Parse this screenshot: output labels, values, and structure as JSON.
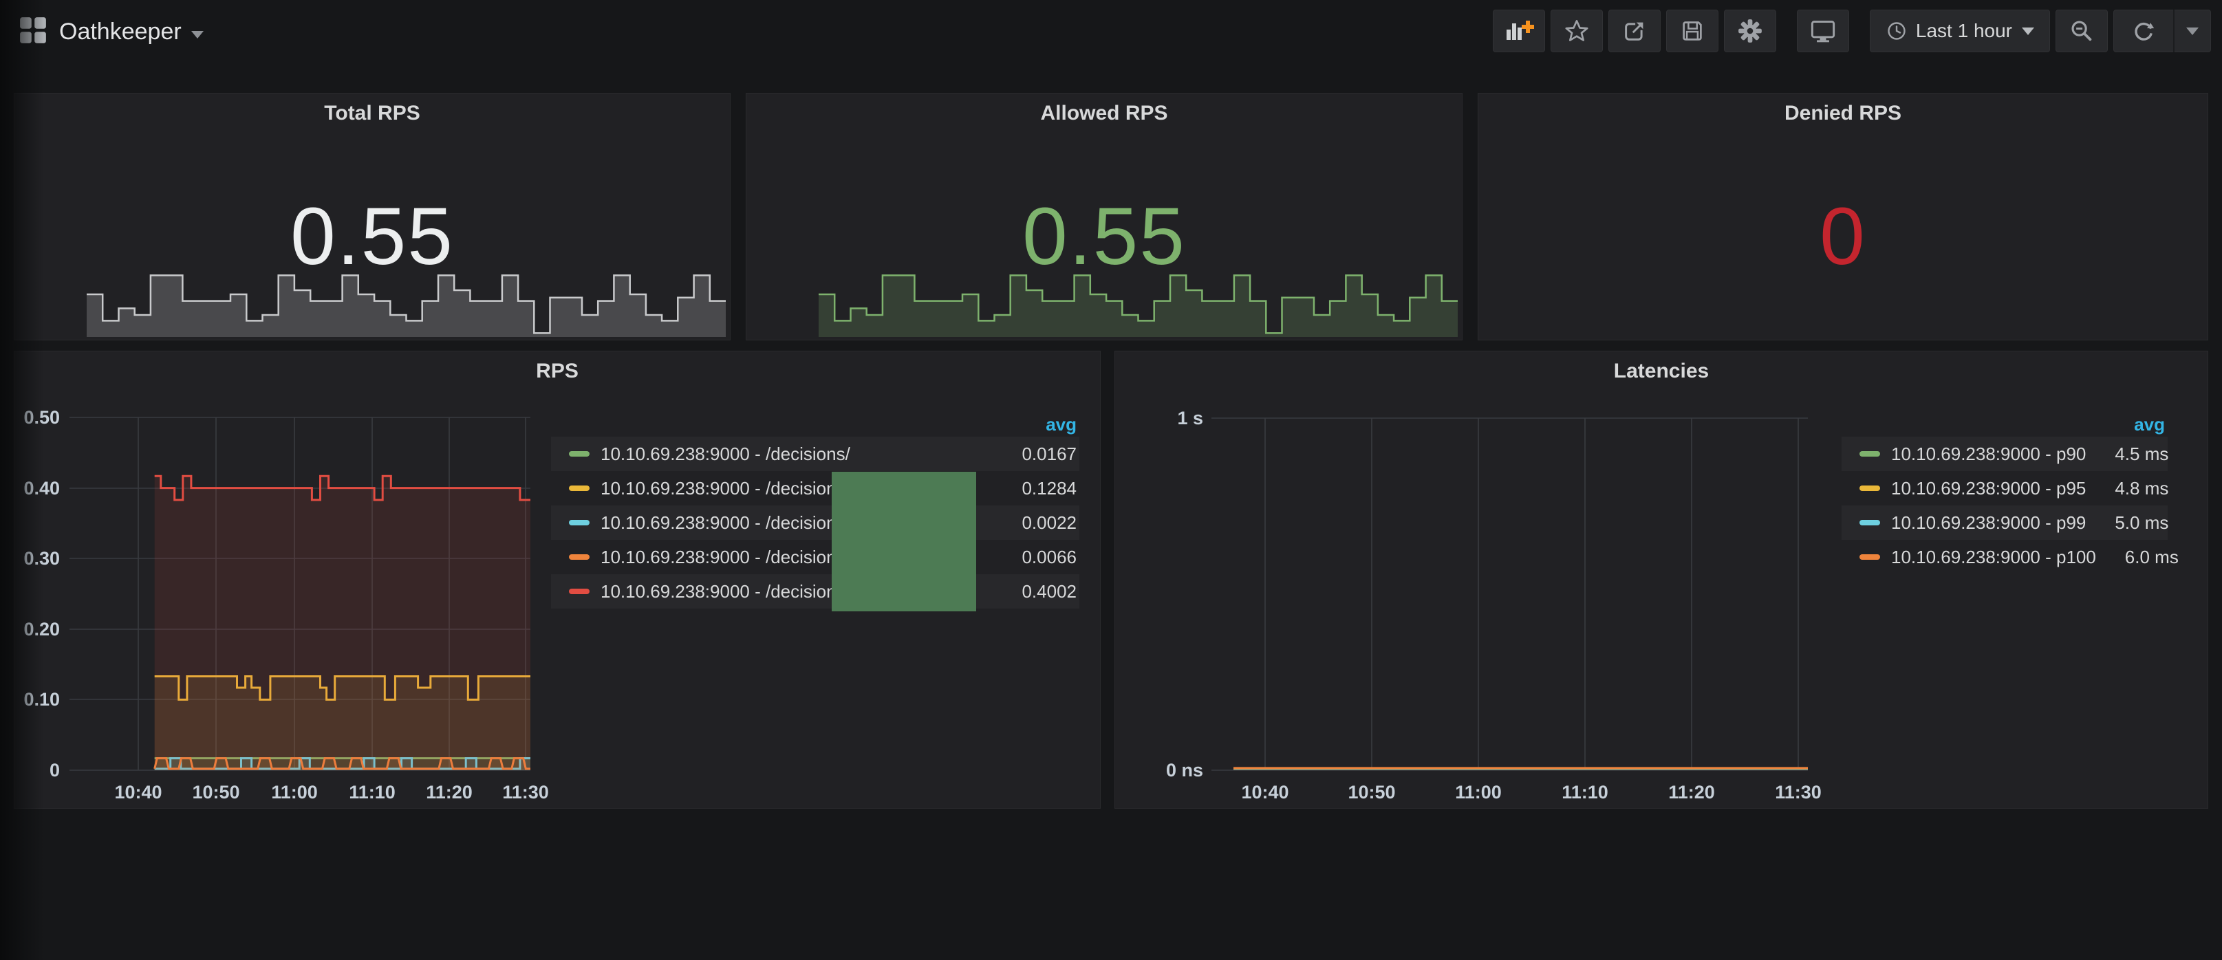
{
  "page": {
    "background": "#161719",
    "panel_background": "#212124",
    "accent_blue": "#33b5e5"
  },
  "navbar": {
    "title": "Oathkeeper",
    "time_picker_label": "Last 1 hour",
    "icons": {
      "dashboard_picker": "grid-squares",
      "add_panel": "bar-chart-plus",
      "star": "star-outline",
      "share": "box-arrow-out",
      "save": "floppy-disk",
      "settings": "gear",
      "cycle_view": "monitor",
      "time_range": "clock",
      "zoom_out": "magnifier-minus",
      "refresh": "circular-arrows",
      "refresh_interval": "triangle-down"
    }
  },
  "stat_panels": [
    {
      "title": "Total RPS",
      "value": "0.55",
      "value_color": "#eceeef",
      "spark_color": "#c9cacc",
      "spark_fill": "rgba(201,202,204,0.24)"
    },
    {
      "title": "Allowed RPS",
      "value": "0.55",
      "value_color": "#7eb26d",
      "spark_color": "#7eb26d",
      "spark_fill": "rgba(126,178,109,0.22)"
    },
    {
      "title": "Denied RPS",
      "value": "0",
      "value_color": "#c4252e"
    }
  ],
  "overlay_artifact": {
    "color": "#4d7b54"
  },
  "chart_data": [
    {
      "type": "area",
      "title": "Total RPS sparkline",
      "ylim": [
        0,
        1
      ],
      "values": [
        0.5,
        0.18,
        0.33,
        0.25,
        0.73,
        0.73,
        0.42,
        0.42,
        0.42,
        0.5,
        0.18,
        0.25,
        0.73,
        0.55,
        0.42,
        0.42,
        0.73,
        0.5,
        0.42,
        0.25,
        0.18,
        0.42,
        0.73,
        0.55,
        0.42,
        0.42,
        0.73,
        0.42,
        0.03,
        0.46,
        0.46,
        0.25,
        0.42,
        0.73,
        0.5,
        0.25,
        0.18,
        0.46,
        0.73,
        0.42
      ]
    },
    {
      "type": "area",
      "title": "Allowed RPS sparkline",
      "ylim": [
        0,
        1
      ],
      "values": [
        0.5,
        0.18,
        0.33,
        0.25,
        0.73,
        0.73,
        0.42,
        0.42,
        0.42,
        0.5,
        0.18,
        0.25,
        0.73,
        0.55,
        0.42,
        0.42,
        0.73,
        0.5,
        0.42,
        0.25,
        0.18,
        0.42,
        0.73,
        0.55,
        0.42,
        0.42,
        0.73,
        0.42,
        0.03,
        0.46,
        0.46,
        0.25,
        0.42,
        0.73,
        0.5,
        0.25,
        0.18,
        0.46,
        0.73,
        0.42
      ]
    },
    {
      "type": "line",
      "title": "RPS",
      "legend_header": "avg",
      "xlabel": "",
      "ylabel": "",
      "ylim": [
        0,
        0.5
      ],
      "grid": true,
      "legend_position": "right-table",
      "x_ticks": [
        "10:40",
        "10:50",
        "11:00",
        "11:10",
        "11:20",
        "11:30"
      ],
      "y_ticks": [
        "0",
        "0.10",
        "0.20",
        "0.30",
        "0.40",
        "0.50"
      ],
      "series": [
        {
          "name": "10.10.69.238:9000 - /decisions/",
          "color": "#7eb26d",
          "avg": "0.0167",
          "points": [
            [
              0.097,
              0.017
            ],
            [
              1,
              0.017
            ]
          ]
        },
        {
          "name": "10.10.69.238:9000 - /decisions/",
          "color": "#eab839",
          "avg": "0.1284",
          "points": [
            [
              0.097,
              0.133
            ],
            [
              0.155,
              0.133
            ],
            [
              0.155,
              0.1
            ],
            [
              0.175,
              0.1
            ],
            [
              0.175,
              0.133
            ],
            [
              0.295,
              0.133
            ],
            [
              0.295,
              0.117
            ],
            [
              0.315,
              0.117
            ],
            [
              0.315,
              0.133
            ],
            [
              0.33,
              0.133
            ],
            [
              0.33,
              0.117
            ],
            [
              0.35,
              0.117
            ],
            [
              0.35,
              0.1
            ],
            [
              0.375,
              0.1
            ],
            [
              0.375,
              0.133
            ],
            [
              0.495,
              0.133
            ],
            [
              0.495,
              0.117
            ],
            [
              0.51,
              0.117
            ],
            [
              0.51,
              0.1
            ],
            [
              0.53,
              0.1
            ],
            [
              0.53,
              0.133
            ],
            [
              0.65,
              0.133
            ],
            [
              0.65,
              0.1
            ],
            [
              0.675,
              0.1
            ],
            [
              0.675,
              0.133
            ],
            [
              0.73,
              0.133
            ],
            [
              0.73,
              0.117
            ],
            [
              0.76,
              0.117
            ],
            [
              0.76,
              0.133
            ],
            [
              0.85,
              0.133
            ],
            [
              0.85,
              0.1
            ],
            [
              0.875,
              0.1
            ],
            [
              0.875,
              0.133
            ],
            [
              1,
              0.133
            ]
          ]
        },
        {
          "name": "10.10.69.238:9000 - /decisions/",
          "color": "#6ed0e0",
          "avg": "0.0022",
          "points": [
            [
              0.097,
              0.002
            ],
            [
              0.135,
              0.002
            ],
            [
              0.135,
              0.017
            ],
            [
              0.16,
              0.017
            ],
            [
              0.16,
              0.002
            ],
            [
              0.305,
              0.002
            ],
            [
              0.305,
              0.017
            ],
            [
              0.33,
              0.017
            ],
            [
              0.33,
              0.002
            ],
            [
              0.445,
              0.002
            ],
            [
              0.445,
              0.017
            ],
            [
              0.47,
              0.017
            ],
            [
              0.47,
              0.002
            ],
            [
              0.6,
              0.002
            ],
            [
              0.6,
              0.017
            ],
            [
              0.625,
              0.017
            ],
            [
              0.625,
              0.002
            ],
            [
              0.69,
              0.002
            ],
            [
              0.69,
              0.017
            ],
            [
              0.715,
              0.017
            ],
            [
              0.715,
              0.002
            ],
            [
              0.845,
              0.002
            ],
            [
              0.845,
              0.017
            ],
            [
              0.87,
              0.017
            ],
            [
              0.87,
              0.002
            ],
            [
              0.975,
              0.002
            ],
            [
              0.975,
              0.017
            ],
            [
              1,
              0.017
            ]
          ]
        },
        {
          "name": "10.10.69.238:9000 - /decisions/",
          "color": "#ef843c",
          "avg": "0.0066",
          "points": [
            [
              0.097,
              0.002
            ],
            [
              0.103,
              0.017
            ],
            [
              0.125,
              0.017
            ],
            [
              0.131,
              0.002
            ],
            [
              0.155,
              0.002
            ],
            [
              0.161,
              0.017
            ],
            [
              0.183,
              0.017
            ],
            [
              0.189,
              0.002
            ],
            [
              0.24,
              0.002
            ],
            [
              0.246,
              0.017
            ],
            [
              0.268,
              0.017
            ],
            [
              0.274,
              0.002
            ],
            [
              0.345,
              0.002
            ],
            [
              0.351,
              0.017
            ],
            [
              0.373,
              0.017
            ],
            [
              0.379,
              0.002
            ],
            [
              0.42,
              0.002
            ],
            [
              0.426,
              0.017
            ],
            [
              0.448,
              0.017
            ],
            [
              0.454,
              0.002
            ],
            [
              0.5,
              0.002
            ],
            [
              0.506,
              0.017
            ],
            [
              0.528,
              0.017
            ],
            [
              0.534,
              0.002
            ],
            [
              0.565,
              0.002
            ],
            [
              0.571,
              0.017
            ],
            [
              0.593,
              0.017
            ],
            [
              0.599,
              0.002
            ],
            [
              0.655,
              0.002
            ],
            [
              0.661,
              0.017
            ],
            [
              0.683,
              0.017
            ],
            [
              0.689,
              0.002
            ],
            [
              0.78,
              0.002
            ],
            [
              0.786,
              0.017
            ],
            [
              0.808,
              0.017
            ],
            [
              0.814,
              0.002
            ],
            [
              0.9,
              0.002
            ],
            [
              0.906,
              0.017
            ],
            [
              0.928,
              0.017
            ],
            [
              0.934,
              0.002
            ],
            [
              0.955,
              0.002
            ],
            [
              0.961,
              0.017
            ],
            [
              0.983,
              0.017
            ],
            [
              0.989,
              0.002
            ],
            [
              1,
              0.002
            ]
          ]
        },
        {
          "name": "10.10.69.238:9000 - /decisions/",
          "color": "#e24d42",
          "avg": "0.4002",
          "points": [
            [
              0.097,
              0.417
            ],
            [
              0.112,
              0.417
            ],
            [
              0.112,
              0.4
            ],
            [
              0.145,
              0.4
            ],
            [
              0.145,
              0.383
            ],
            [
              0.165,
              0.383
            ],
            [
              0.165,
              0.417
            ],
            [
              0.185,
              0.417
            ],
            [
              0.185,
              0.4
            ],
            [
              0.475,
              0.4
            ],
            [
              0.475,
              0.383
            ],
            [
              0.495,
              0.383
            ],
            [
              0.495,
              0.417
            ],
            [
              0.515,
              0.417
            ],
            [
              0.515,
              0.4
            ],
            [
              0.625,
              0.4
            ],
            [
              0.625,
              0.383
            ],
            [
              0.645,
              0.383
            ],
            [
              0.645,
              0.417
            ],
            [
              0.665,
              0.417
            ],
            [
              0.665,
              0.4
            ],
            [
              0.975,
              0.4
            ],
            [
              0.975,
              0.383
            ],
            [
              1,
              0.383
            ]
          ]
        }
      ]
    },
    {
      "type": "line",
      "title": "Latencies",
      "legend_header": "avg",
      "xlabel": "",
      "ylabel": "",
      "ylim": [
        0,
        1
      ],
      "grid": true,
      "legend_position": "right-table",
      "x_ticks": [
        "10:40",
        "10:50",
        "11:00",
        "11:10",
        "11:20",
        "11:30"
      ],
      "y_ticks": [
        "0 ns",
        "1 s"
      ],
      "series": [
        {
          "name": "10.10.69.238:9000 - p90",
          "color": "#7eb26d",
          "avg": "4.5 ms",
          "points": [
            [
              0,
              0.0045
            ],
            [
              1,
              0.0045
            ]
          ]
        },
        {
          "name": "10.10.69.238:9000 - p95",
          "color": "#eab839",
          "avg": "4.8 ms",
          "points": [
            [
              0,
              0.0048
            ],
            [
              1,
              0.0048
            ]
          ]
        },
        {
          "name": "10.10.69.238:9000 - p99",
          "color": "#6ed0e0",
          "avg": "5.0 ms",
          "points": [
            [
              0,
              0.005
            ],
            [
              1,
              0.005
            ]
          ]
        },
        {
          "name": "10.10.69.238:9000 - p100",
          "color": "#ef843c",
          "avg": "6.0 ms",
          "points": [
            [
              0,
              0.006
            ],
            [
              1,
              0.006
            ]
          ]
        }
      ]
    }
  ]
}
